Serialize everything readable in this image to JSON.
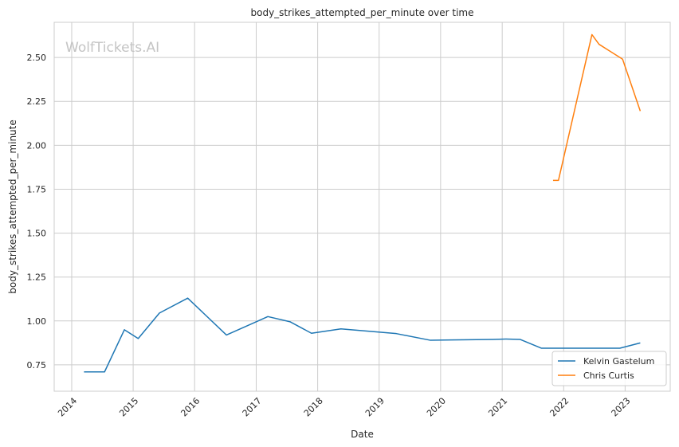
{
  "chart_data": {
    "type": "line",
    "title": "body_strikes_attempted_per_minute over time",
    "xlabel": "Date",
    "ylabel": "body_strikes_attempted_per_minute",
    "watermark": "WolfTickets.AI",
    "xlim": [
      "2013-09-19",
      "2023-09-26"
    ],
    "ylim": [
      0.6,
      2.7
    ],
    "x_ticks": [
      "2014",
      "2015",
      "2016",
      "2017",
      "2018",
      "2019",
      "2020",
      "2021",
      "2022",
      "2023"
    ],
    "y_ticks": [
      0.75,
      1.0,
      1.25,
      1.5,
      1.75,
      2.0,
      2.25,
      2.5
    ],
    "y_tick_labels": [
      "0.75",
      "1.00",
      "1.25",
      "1.50",
      "1.75",
      "2.00",
      "2.25",
      "2.50"
    ],
    "grid": true,
    "legend_position": "lower-right",
    "series": [
      {
        "name": "Kelvin Gastelum",
        "color": "#1f77b4",
        "x": [
          "2014-03-15",
          "2014-07-15",
          "2014-11-10",
          "2015-01-31",
          "2015-06-06",
          "2015-11-21",
          "2016-07-08",
          "2016-12-31",
          "2017-03-11",
          "2017-07-22",
          "2017-11-25",
          "2018-05-19",
          "2019-04-13",
          "2019-11-02",
          "2020-03-07",
          "2020-11-07",
          "2021-01-23",
          "2021-04-17",
          "2021-08-21",
          "2022-01-15",
          "2022-06-01",
          "2022-12-01",
          "2023-04-01"
        ],
        "y": [
          0.71,
          0.71,
          0.95,
          0.9,
          1.045,
          1.13,
          0.92,
          0.995,
          1.025,
          0.995,
          0.93,
          0.955,
          0.928,
          0.89,
          0.892,
          0.895,
          0.897,
          0.895,
          0.845,
          0.845,
          0.845,
          0.845,
          0.875
        ]
      },
      {
        "name": "Chris Curtis",
        "color": "#ff7f0e",
        "x": [
          "2021-10-30",
          "2021-12-01",
          "2022-06-18",
          "2022-07-30",
          "2022-12-17",
          "2023-04-01"
        ],
        "y": [
          1.8,
          1.8,
          2.63,
          2.575,
          2.49,
          2.195
        ]
      }
    ]
  }
}
